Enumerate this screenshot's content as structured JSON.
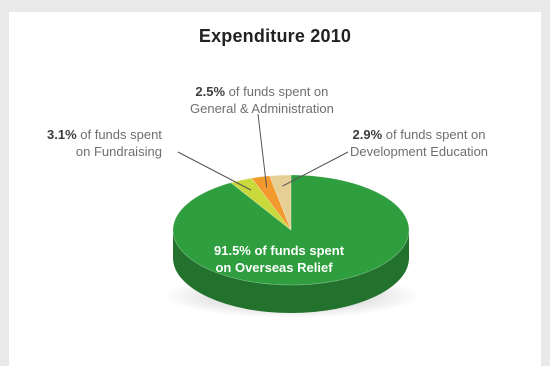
{
  "chart_data": {
    "type": "pie",
    "title": "Expenditure 2010",
    "slices": [
      {
        "percent_label": "91.5%",
        "value": 91.5,
        "text_line1": " of funds spent",
        "text_line2": "on Overseas Relief",
        "color": "#2f9e3e"
      },
      {
        "percent_label": "3.1%",
        "value": 3.1,
        "text_line1": " of funds spent",
        "text_line2": "on Fundraising",
        "color": "#c9d83a"
      },
      {
        "percent_label": "2.5%",
        "value": 2.5,
        "text_line1": " of funds spent on",
        "text_line2": "General & Administration",
        "color": "#f29a2e"
      },
      {
        "percent_label": "2.9%",
        "value": 2.9,
        "text_line1": " of funds spent on",
        "text_line2": "Development Education",
        "color": "#e6cf95"
      }
    ]
  }
}
